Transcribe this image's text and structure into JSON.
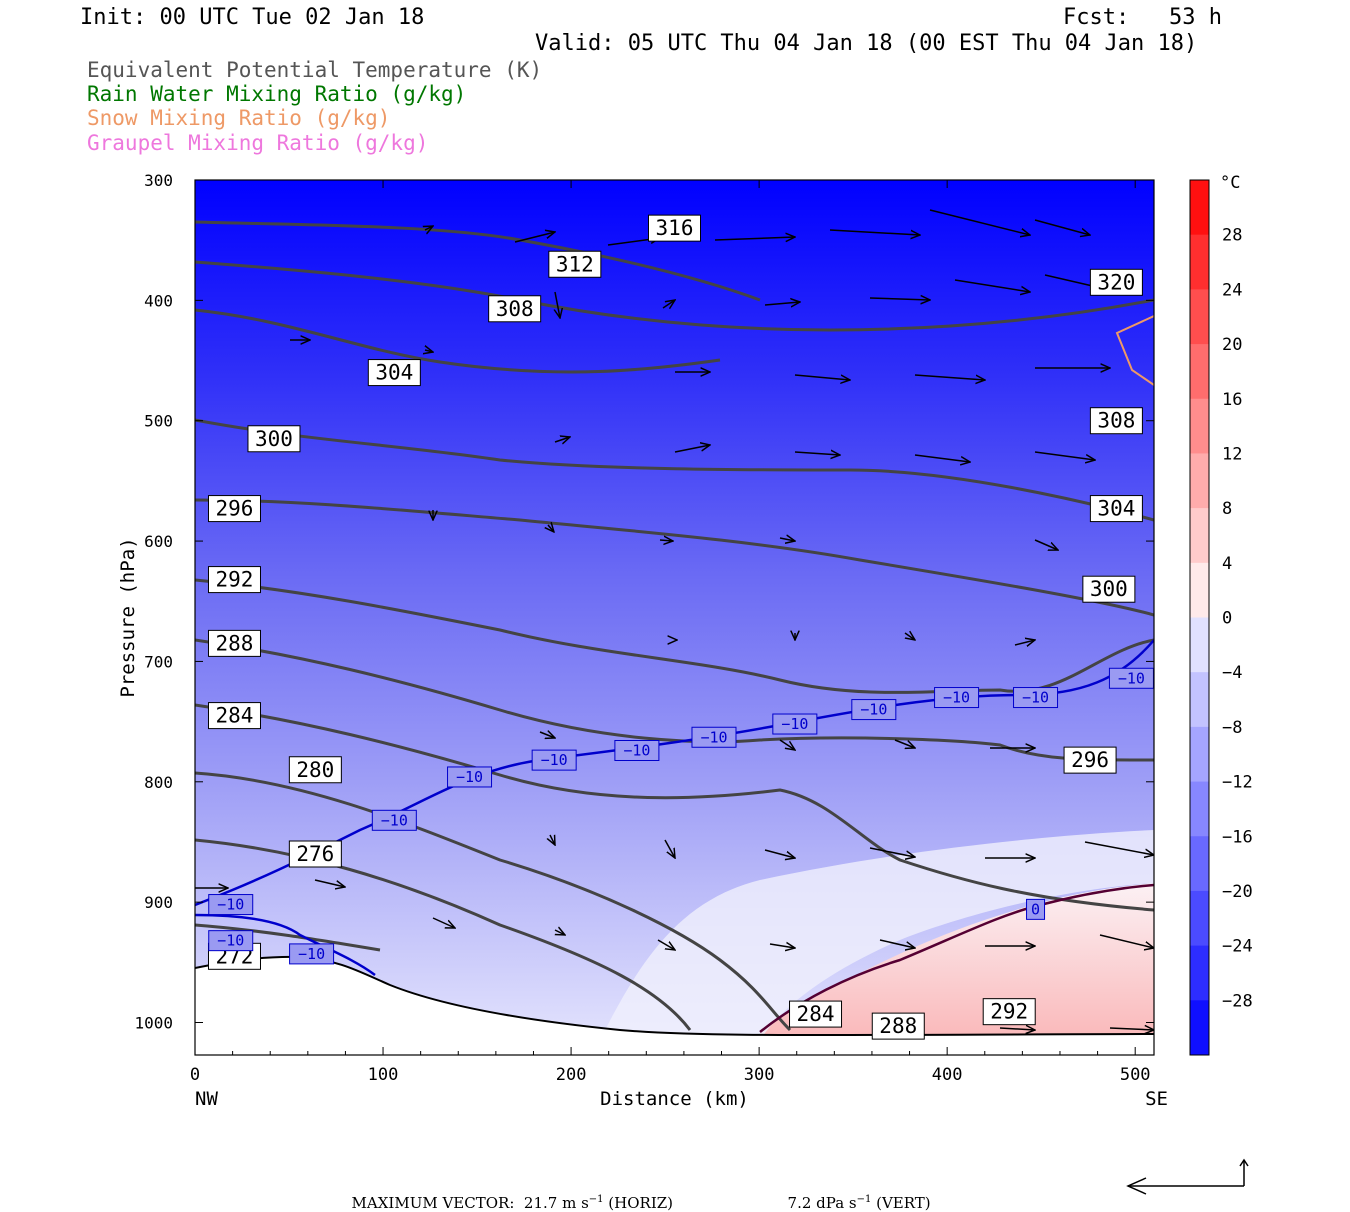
{
  "header": {
    "init": "Init: 00 UTC Tue 02 Jan 18",
    "fcst": "Fcst:   53 h",
    "valid": "Valid: 05 UTC Thu 04 Jan 18 (00 EST Thu 04 Jan 18)"
  },
  "legend": [
    {
      "label": "Equivalent Potential Temperature (K)",
      "color": "#555555"
    },
    {
      "label": "Rain Water Mixing Ratio (g/kg)",
      "color": "#007700"
    },
    {
      "label": "Snow Mixing Ratio (g/kg)",
      "color": "#ee9966"
    },
    {
      "label": "Graupel Mixing Ratio (g/kg)",
      "color": "#ee77dd"
    }
  ],
  "chart_data": {
    "type": "cross-section",
    "xlabel": "Distance (km)",
    "ylabel": "Pressure (hPa)",
    "xlim": [
      0,
      510
    ],
    "ylim": [
      1027,
      300
    ],
    "x_ticks": [
      0,
      100,
      200,
      300,
      400,
      500
    ],
    "y_ticks": [
      300,
      400,
      500,
      600,
      700,
      800,
      900,
      1000
    ],
    "left_end_label": "NW",
    "right_end_label": "SE",
    "colorbar": {
      "unit": "°C",
      "ticks": [
        "28",
        "24",
        "20",
        "16",
        "12",
        "8",
        "4",
        "0",
        "−4",
        "−8",
        "−12",
        "−16",
        "−20",
        "−24",
        "−28"
      ],
      "min": -32,
      "max": 32,
      "cold_color": "#0000ff",
      "warm_color": "#ff0000"
    },
    "theta_e_labels": [
      {
        "text": "316",
        "x": 255,
        "p": 340
      },
      {
        "text": "312",
        "x": 202,
        "p": 370
      },
      {
        "text": "308",
        "x": 170,
        "p": 407
      },
      {
        "text": "304",
        "x": 106,
        "p": 460
      },
      {
        "text": "300",
        "x": 42,
        "p": 515
      },
      {
        "text": "296",
        "x": 21,
        "p": 573
      },
      {
        "text": "292",
        "x": 21,
        "p": 632
      },
      {
        "text": "288",
        "x": 21,
        "p": 685
      },
      {
        "text": "284",
        "x": 21,
        "p": 745
      },
      {
        "text": "280",
        "x": 64,
        "p": 790
      },
      {
        "text": "276",
        "x": 64,
        "p": 860
      },
      {
        "text": "272",
        "x": 21,
        "p": 945
      },
      {
        "text": "320",
        "x": 490,
        "p": 385
      },
      {
        "text": "308",
        "x": 490,
        "p": 500
      },
      {
        "text": "304",
        "x": 490,
        "p": 573
      },
      {
        "text": "300",
        "x": 486,
        "p": 640
      },
      {
        "text": "296",
        "x": 476,
        "p": 782
      },
      {
        "text": "284",
        "x": 330,
        "p": 993
      },
      {
        "text": "288",
        "x": 374,
        "p": 1003
      },
      {
        "text": "292",
        "x": 433,
        "p": 991
      }
    ],
    "temp_labels": [
      {
        "text": "−10",
        "x": 19,
        "p": 902
      },
      {
        "text": "−10",
        "x": 19,
        "p": 932
      },
      {
        "text": "−10",
        "x": 62,
        "p": 943
      },
      {
        "text": "−10",
        "x": 106,
        "p": 832
      },
      {
        "text": "−10",
        "x": 146,
        "p": 796
      },
      {
        "text": "−10",
        "x": 191,
        "p": 782
      },
      {
        "text": "−10",
        "x": 235,
        "p": 774
      },
      {
        "text": "−10",
        "x": 276,
        "p": 763
      },
      {
        "text": "−10",
        "x": 319,
        "p": 752
      },
      {
        "text": "−10",
        "x": 361,
        "p": 740
      },
      {
        "text": "−10",
        "x": 405,
        "p": 730
      },
      {
        "text": "−10",
        "x": 447,
        "p": 730
      },
      {
        "text": "−10",
        "x": 498,
        "p": 714
      },
      {
        "text": "0",
        "x": 447,
        "p": 906
      }
    ]
  },
  "footer": {
    "max_vector": "MAXIMUM VECTOR:  21.7 m s",
    "exp": "−1",
    "horiz": " (HORIZ)",
    "vert_val": "7.2 dPa s",
    "vert": " (VERT)"
  }
}
